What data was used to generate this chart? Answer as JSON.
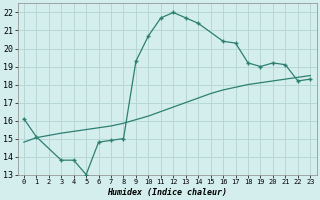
{
  "line1_x": [
    0,
    1,
    3,
    4,
    5,
    6,
    7,
    8,
    9,
    10,
    11,
    12,
    13,
    14,
    16,
    17,
    18,
    19,
    20,
    21,
    22,
    23
  ],
  "line1_y": [
    16.1,
    15.1,
    13.8,
    13.8,
    13.0,
    14.8,
    14.9,
    15.0,
    19.3,
    20.7,
    21.7,
    22.0,
    21.7,
    21.4,
    20.4,
    20.3,
    19.2,
    19.0,
    19.2,
    19.1,
    18.2,
    18.3
  ],
  "line2_x": [
    0,
    1,
    3,
    4,
    5,
    6,
    7,
    8,
    9,
    10,
    11,
    12,
    13,
    14,
    15,
    16,
    17,
    18,
    19,
    20,
    21,
    22,
    23
  ],
  "line2_y": [
    14.8,
    15.05,
    15.3,
    15.4,
    15.5,
    15.6,
    15.7,
    15.85,
    16.05,
    16.25,
    16.5,
    16.75,
    17.0,
    17.25,
    17.5,
    17.7,
    17.85,
    18.0,
    18.1,
    18.2,
    18.3,
    18.4,
    18.5
  ],
  "line_color": "#2d7f72",
  "bg_color": "#d4eeee",
  "grid_color": "#b8d8d8",
  "xlabel": "Humidex (Indice chaleur)",
  "xlim": [
    -0.5,
    23.5
  ],
  "ylim": [
    13,
    22.5
  ],
  "xticks": [
    0,
    1,
    2,
    3,
    4,
    5,
    6,
    7,
    8,
    9,
    10,
    11,
    12,
    13,
    14,
    15,
    16,
    17,
    18,
    19,
    20,
    21,
    22,
    23
  ],
  "yticks": [
    13,
    14,
    15,
    16,
    17,
    18,
    19,
    20,
    21,
    22
  ],
  "xlabel_fontsize": 6,
  "xtick_fontsize": 5,
  "ytick_fontsize": 6
}
